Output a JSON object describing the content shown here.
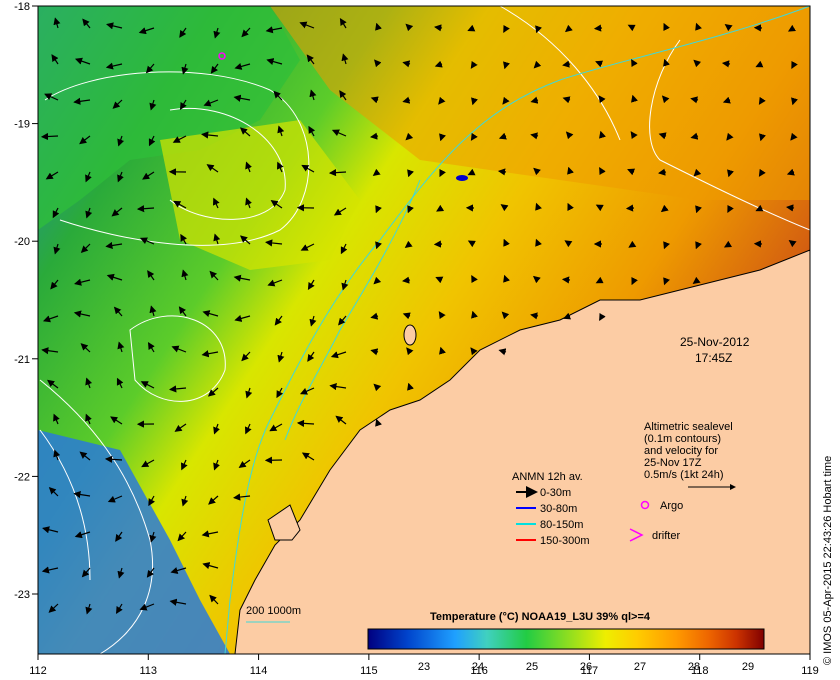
{
  "map": {
    "date": "25-Nov-2012",
    "time": "17:45Z",
    "lon_ticks": [
      "112",
      "113",
      "114",
      "115",
      "116",
      "117",
      "118",
      "119"
    ],
    "lat_ticks": [
      "-18",
      "-19",
      "-20",
      "-21",
      "-22",
      "-23"
    ]
  },
  "sealevel_note": {
    "line1": "Altimetric sealevel",
    "line2": "(0.1m contours)",
    "line3": "and velocity for",
    "line4": "25-Nov 17Z",
    "line5": "0.5m/s (1kt 24h)"
  },
  "legend": {
    "title": "ANMN 12h av.",
    "items": [
      {
        "label": "0-30m",
        "color": "#000000"
      },
      {
        "label": "30-80m",
        "color": "#0000ff"
      },
      {
        "label": "80-150m",
        "color": "#00e0e0"
      },
      {
        "label": "150-300m",
        "color": "#ff0000"
      }
    ],
    "argo_label": "Argo",
    "argo_color": "#ff00ff",
    "drifter_label": "drifter",
    "drifter_color": "#ff00ff"
  },
  "bathy_label": "200  1000m",
  "colorbar": {
    "title": "Temperature (°C) NOAA19_L3U 39% ql>=4",
    "ticks": [
      "23",
      "24",
      "25",
      "26",
      "27",
      "28",
      "29"
    ],
    "colors": [
      "#000080",
      "#0044cc",
      "#1fa0ff",
      "#40d0c0",
      "#22cc44",
      "#88dd22",
      "#eeee00",
      "#ffcc00",
      "#ff9900",
      "#ee6600",
      "#cc3300",
      "#800000"
    ]
  },
  "credit": "© IMOS 05-Apr-2015 22:43:26 Hobart time",
  "colors": {
    "land": "#fccca4",
    "sea_cool": "#2a6ad8",
    "sea_mid": "#2ec83a",
    "sea_warm": "#f0a000"
  }
}
